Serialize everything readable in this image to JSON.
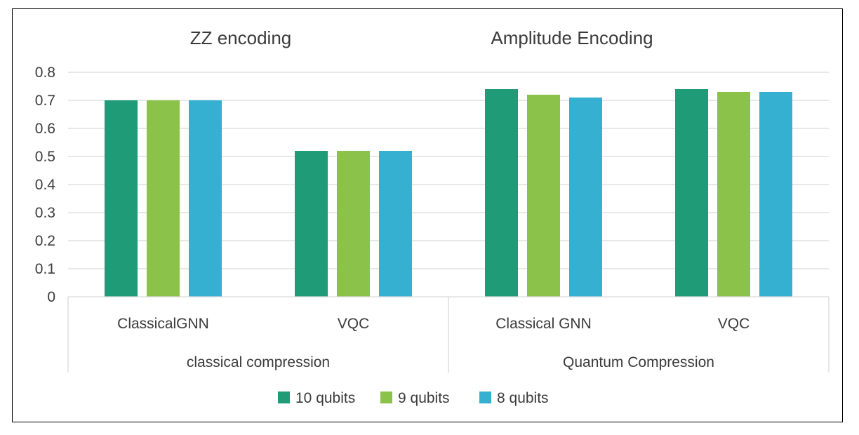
{
  "chart_data": {
    "type": "bar",
    "annotations": [
      "ZZ encoding",
      "Amplitude Encoding"
    ],
    "categories": [
      "ClassicalGNN",
      "VQC",
      "Classical GNN",
      "VQC"
    ],
    "groups": [
      {
        "label": "classical compression",
        "categories": [
          "ClassicalGNN",
          "VQC"
        ]
      },
      {
        "label": "Quantum Compression",
        "categories": [
          "Classical GNN",
          "VQC"
        ]
      }
    ],
    "series": [
      {
        "name": "10 qubits",
        "values": [
          0.7,
          0.52,
          0.74,
          0.74
        ],
        "color": "#1f9b77"
      },
      {
        "name": "9 qubits",
        "values": [
          0.7,
          0.52,
          0.72,
          0.73
        ],
        "color": "#8bc34a"
      },
      {
        "name": "8 qubits",
        "values": [
          0.7,
          0.52,
          0.71,
          0.73
        ],
        "color": "#36b0d1"
      }
    ],
    "yticks": [
      "0",
      "0.1",
      "0.2",
      "0.3",
      "0.4",
      "0.5",
      "0.6",
      "0.7",
      "0.8"
    ],
    "ylim": [
      0,
      0.8
    ],
    "grid": true,
    "legend_position": "bottom"
  }
}
